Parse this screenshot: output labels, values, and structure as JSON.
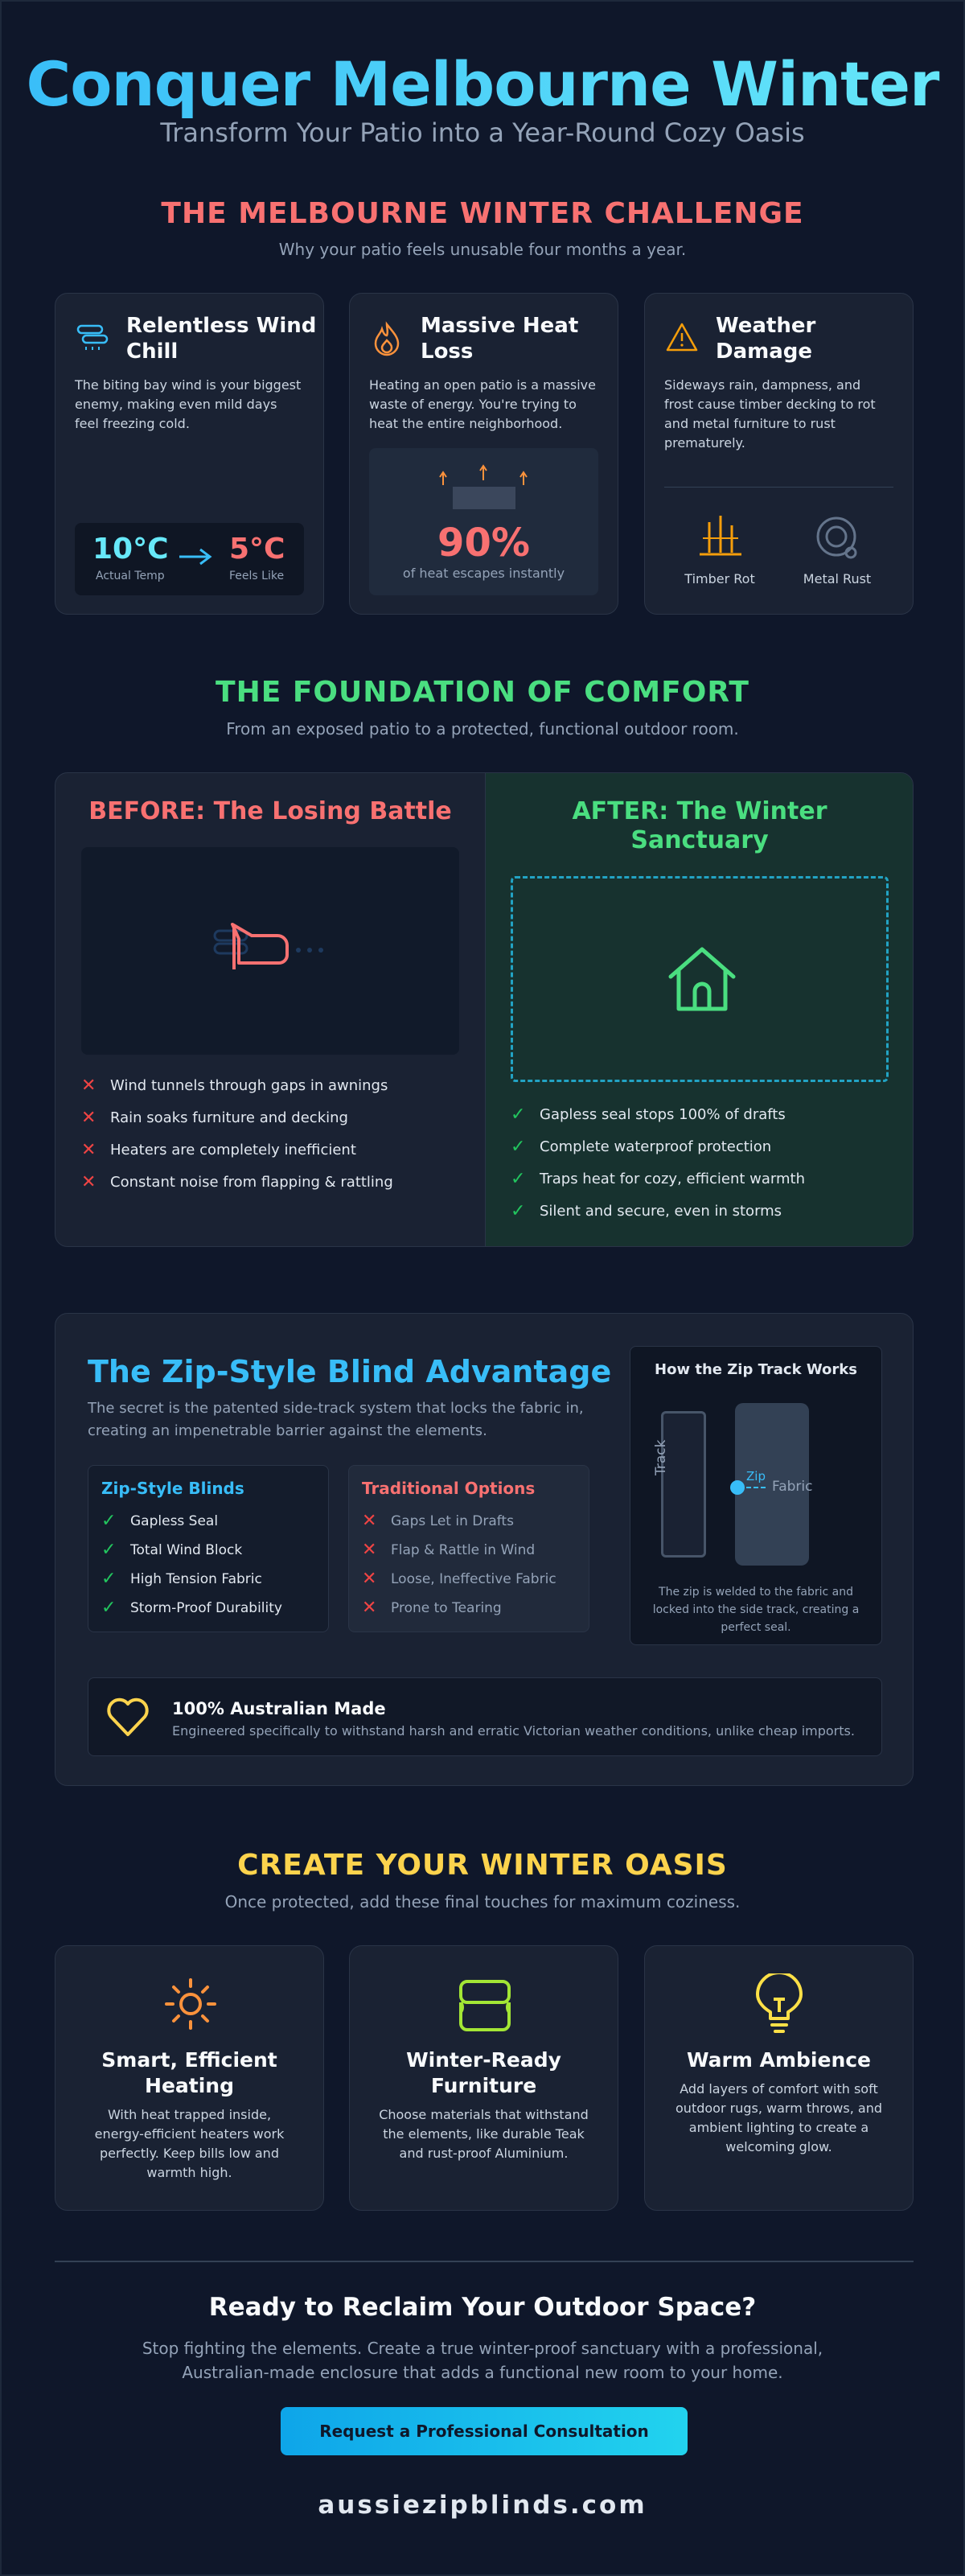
{
  "hero": {
    "title": "Conquer Melbourne Winter",
    "subtitle": "Transform Your Patio into a Year-Round Cozy Oasis"
  },
  "challenge": {
    "title": "THE MELBOURNE WINTER CHALLENGE",
    "subtitle": "Why your patio feels unusable four months a year.",
    "cards": [
      {
        "title_l1": "Relentless Wind",
        "title_l2": "Chill",
        "text_l1": "The biting bay wind is your biggest",
        "text_l2": "enemy, making even mild days",
        "text_l3": "feel freezing cold.",
        "actual_temp": "10°C",
        "actual_label": "Actual Temp",
        "feels_temp": "5°C",
        "feels_label": "Feels Like"
      },
      {
        "title_l1": "Massive Heat",
        "title_l2": "Loss",
        "text_l1": "Heating an open patio is a massive",
        "text_l2": "waste of energy. You're trying to",
        "text_l3": "heat the entire neighborhood.",
        "stat": "90%",
        "stat_label": "of heat escapes instantly"
      },
      {
        "title_l1": "Weather",
        "title_l2": "Damage",
        "text_l1": "Sideways rain, dampness, and",
        "text_l2": "frost cause timber decking to rot",
        "text_l3": "and metal furniture to rust",
        "text_l4": "prematurely.",
        "item1": "Timber Rot",
        "item2": "Metal Rust"
      }
    ]
  },
  "foundation": {
    "title": "THE FOUNDATION OF COMFORT",
    "subtitle": "From an exposed patio to a protected, functional outdoor room.",
    "before_title": "BEFORE: The Losing Battle",
    "before_items": [
      "Wind tunnels through gaps in awnings",
      "Rain soaks furniture and decking",
      "Heaters are completely inefficient",
      "Constant noise from flapping & rattling"
    ],
    "after_title_l1": "AFTER: The Winter",
    "after_title_l2": "Sanctuary",
    "after_items": [
      "Gapless seal stops 100% of drafts",
      "Complete waterproof protection",
      "Traps heat for cozy, efficient warmth",
      "Silent and secure, even in storms"
    ]
  },
  "advantage": {
    "title": "The Zip-Style Blind Advantage",
    "text_l1": "The secret is the patented side-track system that locks the fabric in,",
    "text_l2": "creating an impenetrable barrier against the elements.",
    "zip_title": "Zip-Style Blinds",
    "zip_items": [
      "Gapless Seal",
      "Total Wind Block",
      "High Tension Fabric",
      "Storm-Proof Durability"
    ],
    "trad_title": "Traditional Options",
    "trad_items": [
      "Gaps Let in Drafts",
      "Flap & Rattle in Wind",
      "Loose, Ineffective Fabric",
      "Prone to Tearing"
    ],
    "track_title": "How the Zip Track Works",
    "track_label": "Track",
    "zip_label": "Zip",
    "fabric_label": "Fabric",
    "track_caption_l1": "The zip is welded to the fabric and",
    "track_caption_l2": "locked into the side track, creating a",
    "track_caption_l3": "perfect seal.",
    "made_title": "100% Australian Made",
    "made_text": "Engineered specifically to withstand harsh and erratic Victorian weather conditions, unlike cheap imports."
  },
  "oasis": {
    "title": "CREATE YOUR WINTER OASIS",
    "subtitle": "Once protected, add these final touches for maximum coziness.",
    "cards": [
      {
        "title_l1": "Smart, Efficient",
        "title_l2": "Heating",
        "text_l1": "With heat trapped inside,",
        "text_l2": "energy-efficient heaters work",
        "text_l3": "perfectly. Keep bills low and",
        "text_l4": "warmth high."
      },
      {
        "title_l1": "Winter-Ready",
        "title_l2": "Furniture",
        "text_l1": "Choose materials that withstand",
        "text_l2": "the elements, like durable Teak",
        "text_l3": "and rust-proof Aluminium.",
        "text_l4": ""
      },
      {
        "title_l1": "Warm Ambience",
        "title_l2": "",
        "text_l1": "Add layers of comfort with soft",
        "text_l2": "outdoor rugs, warm throws, and",
        "text_l3": "ambient lighting to create a",
        "text_l4": "welcoming glow."
      }
    ]
  },
  "cta": {
    "title": "Ready to Reclaim Your Outdoor Space?",
    "text_l1": "Stop fighting the elements. Create a true winter-proof sanctuary with a professional,",
    "text_l2": "Australian-made enclosure that adds a functional new room to your home.",
    "button": "Request a Professional Consultation",
    "domain": "aussiezipblinds.com"
  },
  "colors": {
    "accent_blue": "#38bdf8",
    "accent_red": "#f87171",
    "accent_green": "#4ade80",
    "accent_yellow": "#fcd34d",
    "background": "#0f172a"
  }
}
